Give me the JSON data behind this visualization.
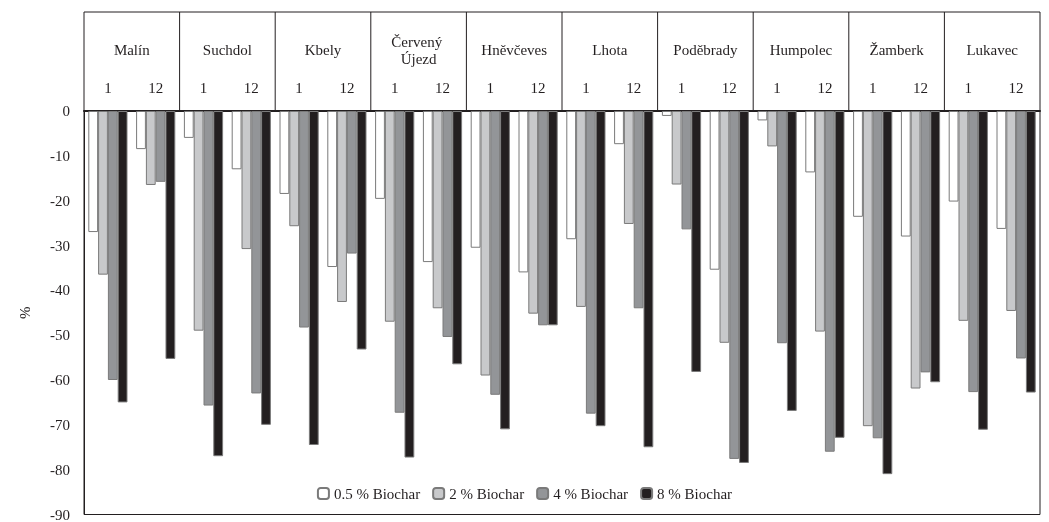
{
  "chart_data": {
    "type": "bar",
    "ylabel": "%",
    "categories": [
      "1",
      "12",
      "1",
      "12",
      "1",
      "12",
      "1",
      "12",
      "1",
      "12",
      "1",
      "12",
      "1",
      "12",
      "1",
      "12",
      "1",
      "12",
      "1",
      "12"
    ],
    "annotations": [
      "Malín",
      "Suchdol",
      "Kbely",
      "Červený Újezd",
      "Hněvčeves",
      "Lhota",
      "Poděbrady",
      "Humpolec",
      "Žamberk",
      "Lukavec"
    ],
    "series": [
      {
        "name": "0.5 % Biochar",
        "color": "#ffffff",
        "values": [
          -27,
          -8.5,
          -6,
          -13,
          -18.5,
          -34.8,
          -19.6,
          -33.7,
          -30.5,
          -36,
          -28.6,
          -7.4,
          -1.1,
          -35.4,
          -2.1,
          -13.7,
          -23.6,
          -28,
          -20.2,
          -26.3
        ]
      },
      {
        "name": "2 % Biochar",
        "color": "#c8c9cb",
        "values": [
          -36.5,
          -16.5,
          -49,
          -30.8,
          -25.7,
          -42.6,
          -47,
          -44,
          -59,
          -45.2,
          -43.7,
          -25.2,
          -16.4,
          -51.7,
          -7.9,
          -49.2,
          -70.3,
          -61.9,
          -46.8,
          -44.6
        ]
      },
      {
        "name": "4 % Biochar",
        "color": "#939598",
        "values": [
          -60,
          -15.8,
          -65.7,
          -63,
          -48.3,
          -31.8,
          -67.3,
          -50.4,
          -63.3,
          -47.8,
          -67.5,
          -44,
          -26.4,
          -77.6,
          -51.8,
          -76,
          -73,
          -58.3,
          -62.7,
          -55.2
        ]
      },
      {
        "name": "8 % Biochar",
        "color": "#231f20",
        "values": [
          -65,
          -55.3,
          -77,
          -70,
          -74.5,
          -53.2,
          -77.3,
          -56.5,
          -71,
          -47.8,
          -70.3,
          -75,
          -58.2,
          -78.5,
          -66.9,
          -72.9,
          -81,
          -60.5,
          -71.1,
          -62.8
        ]
      }
    ],
    "ylim": [
      -90,
      0
    ],
    "yticks": [
      -90,
      -80,
      -70,
      -60,
      -50,
      -40,
      -30,
      -20,
      -10,
      0
    ],
    "legend": "bottom"
  }
}
